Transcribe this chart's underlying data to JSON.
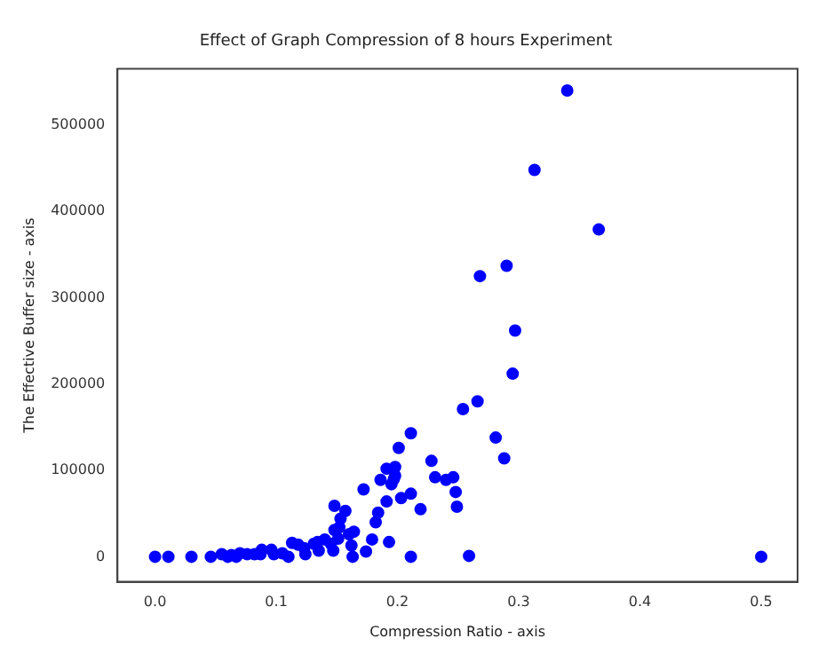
{
  "chart_data": {
    "type": "scatter",
    "title": "Effect of Graph Compression of 8 hours Experiment",
    "xlabel": "Compression Ratio - axis",
    "ylabel": "The Effective Buffer size - axis",
    "x": [
      0.34,
      0.313,
      0.366,
      0.29,
      0.268,
      0.297,
      0.295,
      0.266,
      0.254,
      0.211,
      0.201,
      0.281,
      0.288,
      0.228,
      0.5,
      0.191,
      0.198,
      0.198,
      0.197,
      0.195,
      0.186,
      0.231,
      0.24,
      0.246,
      0.248,
      0.249,
      0.219,
      0.211,
      0.203,
      0.191,
      0.172,
      0.184,
      0.182,
      0.179,
      0.193,
      0.174,
      0.211,
      0.259,
      0.148,
      0.157,
      0.153,
      0.152,
      0.148,
      0.164,
      0.16,
      0.151,
      0.145,
      0.147,
      0.162,
      0.163,
      0.14,
      0.134,
      0.135,
      0.131,
      0.123,
      0.124,
      0.113,
      0.118,
      0.11,
      0.105,
      0.096,
      0.088,
      0.087,
      0.082,
      0.098,
      0.076,
      0.07,
      0.063,
      0.055,
      0.046,
      0.03,
      0.011,
      0.0,
      0.06,
      0.067
    ],
    "values": [
      540000,
      448000,
      379000,
      337000,
      325000,
      262000,
      212000,
      180000,
      171000,
      143000,
      126000,
      138000,
      114000,
      111000,
      0,
      102000,
      104000,
      94000,
      90000,
      84000,
      89000,
      92000,
      89000,
      92000,
      75000,
      58000,
      55000,
      73000,
      68000,
      64000,
      78000,
      51000,
      40000,
      20000,
      17000,
      6000,
      0,
      1000,
      59000,
      53000,
      44000,
      34000,
      31000,
      29000,
      26000,
      21000,
      15000,
      7000,
      13000,
      0,
      20000,
      17000,
      7000,
      15000,
      10000,
      3000,
      16000,
      14000,
      0,
      4000,
      8000,
      8000,
      3000,
      3000,
      3000,
      3000,
      4000,
      2000,
      3000,
      0,
      0,
      0,
      0,
      0,
      0
    ],
    "color": "#0000ff",
    "marker": "circle",
    "xlim": [
      -0.031,
      0.53
    ],
    "ylim": [
      -29000,
      565000
    ],
    "xticks": [
      {
        "value": 0,
        "label": "0.0"
      },
      0.1,
      0.2,
      0.3,
      0.4,
      0.5
    ],
    "yticks": [
      0,
      100000,
      200000,
      300000,
      400000,
      500000
    ],
    "grid": false
  }
}
